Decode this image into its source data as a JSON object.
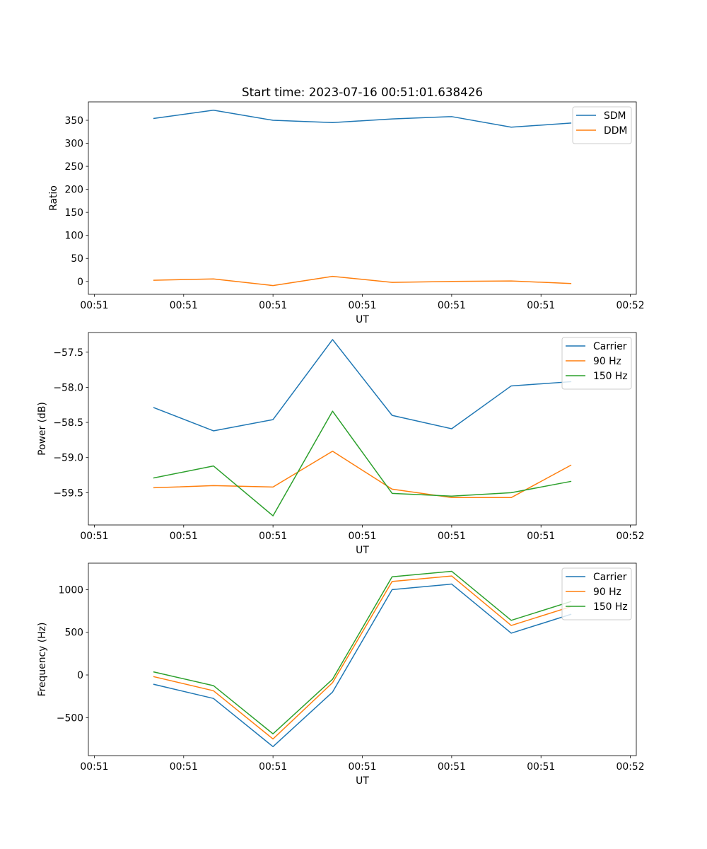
{
  "title": "Start time: 2023-07-16 00:51:01.638426",
  "colors": {
    "c0": "#1f77b4",
    "c1": "#ff7f0e",
    "c2": "#2ca02c"
  },
  "chart_data": [
    {
      "type": "line",
      "title": "Start time: 2023-07-16 00:51:01.638426",
      "xlabel": "UT",
      "ylabel": "Ratio",
      "x": [
        1,
        2,
        3,
        4,
        5,
        6,
        7,
        8
      ],
      "xlim": [
        -0.1,
        9.1
      ],
      "xticks": [
        0,
        1.5,
        3,
        4.5,
        6,
        7.5,
        9
      ],
      "xtick_labels": [
        "00:51",
        "00:51",
        "00:51",
        "00:51",
        "00:51",
        "00:51",
        "00:52"
      ],
      "ylim": [
        -28,
        390
      ],
      "yticks": [
        0,
        50,
        100,
        150,
        200,
        250,
        300,
        350
      ],
      "ytick_labels": [
        "0",
        "50",
        "100",
        "150",
        "200",
        "250",
        "300",
        "350"
      ],
      "legend": "upper right",
      "series": [
        {
          "name": "SDM",
          "color": "#1f77b4",
          "values": [
            354,
            372,
            350,
            345,
            353,
            358,
            335,
            344
          ]
        },
        {
          "name": "DDM",
          "color": "#ff7f0e",
          "values": [
            2.5,
            5.5,
            -9,
            11,
            -2,
            0,
            1,
            -4.5
          ]
        }
      ]
    },
    {
      "type": "line",
      "xlabel": "UT",
      "ylabel": "Power (dB)",
      "x": [
        1,
        2,
        3,
        4,
        5,
        6,
        7,
        8
      ],
      "xlim": [
        -0.1,
        9.1
      ],
      "xticks": [
        0,
        1.5,
        3,
        4.5,
        6,
        7.5,
        9
      ],
      "xtick_labels": [
        "00:51",
        "00:51",
        "00:51",
        "00:51",
        "00:51",
        "00:51",
        "00:52"
      ],
      "ylim": [
        -59.96,
        -57.22
      ],
      "yticks": [
        -59.5,
        -59.0,
        -58.5,
        -58.0,
        -57.5
      ],
      "ytick_labels": [
        "−59.5",
        "−59.0",
        "−58.5",
        "−58.0",
        "−57.5"
      ],
      "legend": "upper right",
      "series": [
        {
          "name": "Carrier",
          "color": "#1f77b4",
          "values": [
            -58.29,
            -58.62,
            -58.46,
            -57.32,
            -58.4,
            -58.59,
            -57.98,
            -57.92
          ]
        },
        {
          "name": "90 Hz",
          "color": "#ff7f0e",
          "values": [
            -59.43,
            -59.4,
            -59.42,
            -58.91,
            -59.45,
            -59.57,
            -59.57,
            -59.11
          ]
        },
        {
          "name": "150 Hz",
          "color": "#2ca02c",
          "values": [
            -59.29,
            -59.12,
            -59.83,
            -58.34,
            -59.51,
            -59.55,
            -59.5,
            -59.34
          ]
        }
      ]
    },
    {
      "type": "line",
      "xlabel": "UT",
      "ylabel": "Frequency (Hz)",
      "x": [
        1,
        2,
        3,
        4,
        5,
        6,
        7,
        8
      ],
      "xlim": [
        -0.1,
        9.1
      ],
      "xticks": [
        0,
        1.5,
        3,
        4.5,
        6,
        7.5,
        9
      ],
      "xtick_labels": [
        "00:51",
        "00:51",
        "00:51",
        "00:51",
        "00:51",
        "00:51",
        "00:52"
      ],
      "ylim": [
        -945,
        1310
      ],
      "yticks": [
        -500,
        0,
        500,
        1000
      ],
      "ytick_labels": [
        "−500",
        "0",
        "500",
        "1000"
      ],
      "legend": "upper right",
      "series": [
        {
          "name": "Carrier",
          "color": "#1f77b4",
          "values": [
            -110,
            -275,
            -840,
            -200,
            1000,
            1065,
            490,
            710
          ]
        },
        {
          "name": "90 Hz",
          "color": "#ff7f0e",
          "values": [
            -20,
            -185,
            -750,
            -90,
            1095,
            1160,
            580,
            800
          ]
        },
        {
          "name": "150 Hz",
          "color": "#2ca02c",
          "values": [
            35,
            -125,
            -690,
            -50,
            1150,
            1215,
            640,
            860
          ]
        }
      ]
    }
  ]
}
